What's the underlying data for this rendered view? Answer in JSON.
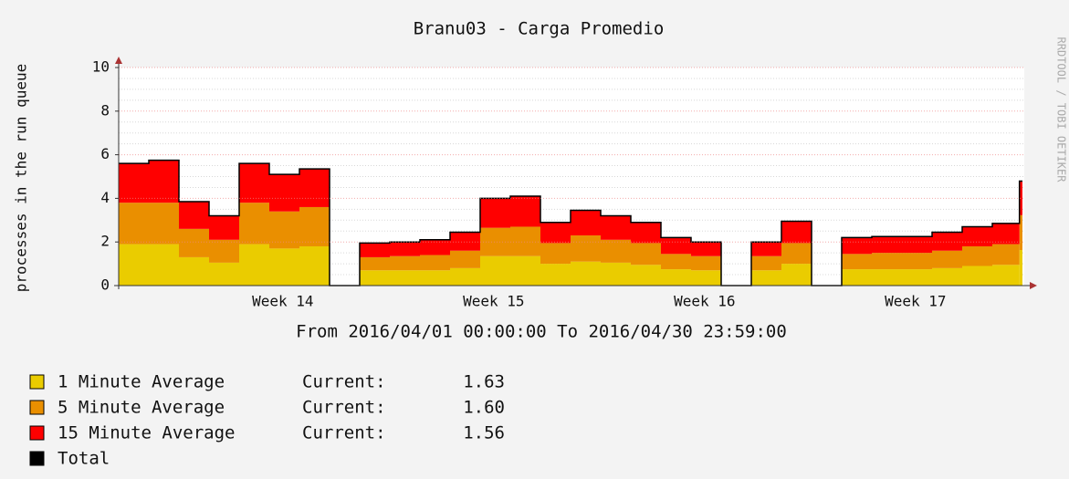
{
  "chart_data": {
    "type": "stacked-step-area",
    "title": "Branu03 - Carga Promedio",
    "y_label": "processes in the run queue",
    "x_label": "From 2016/04/01 00:00:00 To 2016/04/30 23:59:00",
    "watermark": "RRDTOOL / TOBI OETIKER",
    "current_text": "Current:",
    "x": [
      0,
      1,
      2,
      3,
      4,
      5,
      6,
      7,
      8,
      9,
      10,
      11,
      12,
      13,
      14,
      15,
      16,
      17,
      18,
      19,
      20,
      21,
      22,
      23,
      24,
      25,
      26,
      27,
      28,
      29,
      29.9
    ],
    "xlim": [
      0,
      30
    ],
    "xticks": [
      {
        "value": 5.45,
        "label": "Week 14"
      },
      {
        "value": 12.45,
        "label": "Week 15"
      },
      {
        "value": 19.45,
        "label": "Week 16"
      },
      {
        "value": 26.45,
        "label": "Week 17"
      }
    ],
    "ylim": [
      0,
      10
    ],
    "yticks": [
      0,
      2,
      4,
      6,
      8,
      10
    ],
    "minor_yticks": [
      0.5,
      1,
      1.5,
      2.5,
      3,
      3.5,
      4.5,
      5,
      5.5,
      6.5,
      7,
      7.5,
      8.5,
      9,
      9.5
    ],
    "grid": true,
    "series": [
      {
        "name": "1 Minute Average",
        "color": "#eacc00",
        "current": {
          "value": 1.63,
          "label": "1.63"
        },
        "values": [
          1.9,
          1.9,
          1.3,
          1.05,
          1.9,
          1.7,
          1.8,
          0,
          0.7,
          0.7,
          0.7,
          0.8,
          1.35,
          1.35,
          1.0,
          1.1,
          1.05,
          0.95,
          0.75,
          0.7,
          0,
          0.7,
          1.0,
          0,
          0.75,
          0.75,
          0.75,
          0.8,
          0.9,
          0.95,
          1.63
        ]
      },
      {
        "name": "5 Minute Average",
        "color": "#ea8f00",
        "current": {
          "value": 1.6,
          "label": "1.60"
        },
        "values": [
          1.9,
          1.9,
          1.3,
          1.05,
          1.9,
          1.7,
          1.8,
          0,
          0.6,
          0.65,
          0.7,
          0.8,
          1.3,
          1.35,
          0.95,
          1.2,
          1.05,
          1.0,
          0.7,
          0.65,
          0,
          0.65,
          0.95,
          0,
          0.7,
          0.75,
          0.75,
          0.8,
          0.9,
          0.95,
          1.6
        ]
      },
      {
        "name": "15 Minute Average",
        "color": "#ff0000",
        "current": {
          "value": 1.56,
          "label": "1.56"
        },
        "values": [
          1.8,
          1.95,
          1.25,
          1.1,
          1.8,
          1.7,
          1.75,
          0,
          0.65,
          0.65,
          0.7,
          0.85,
          1.35,
          1.4,
          0.95,
          1.15,
          1.1,
          0.95,
          0.75,
          0.65,
          0,
          0.65,
          1.0,
          0,
          0.75,
          0.75,
          0.75,
          0.85,
          0.9,
          0.95,
          1.56
        ]
      }
    ],
    "total": {
      "name": "Total",
      "color": "#000000"
    }
  }
}
